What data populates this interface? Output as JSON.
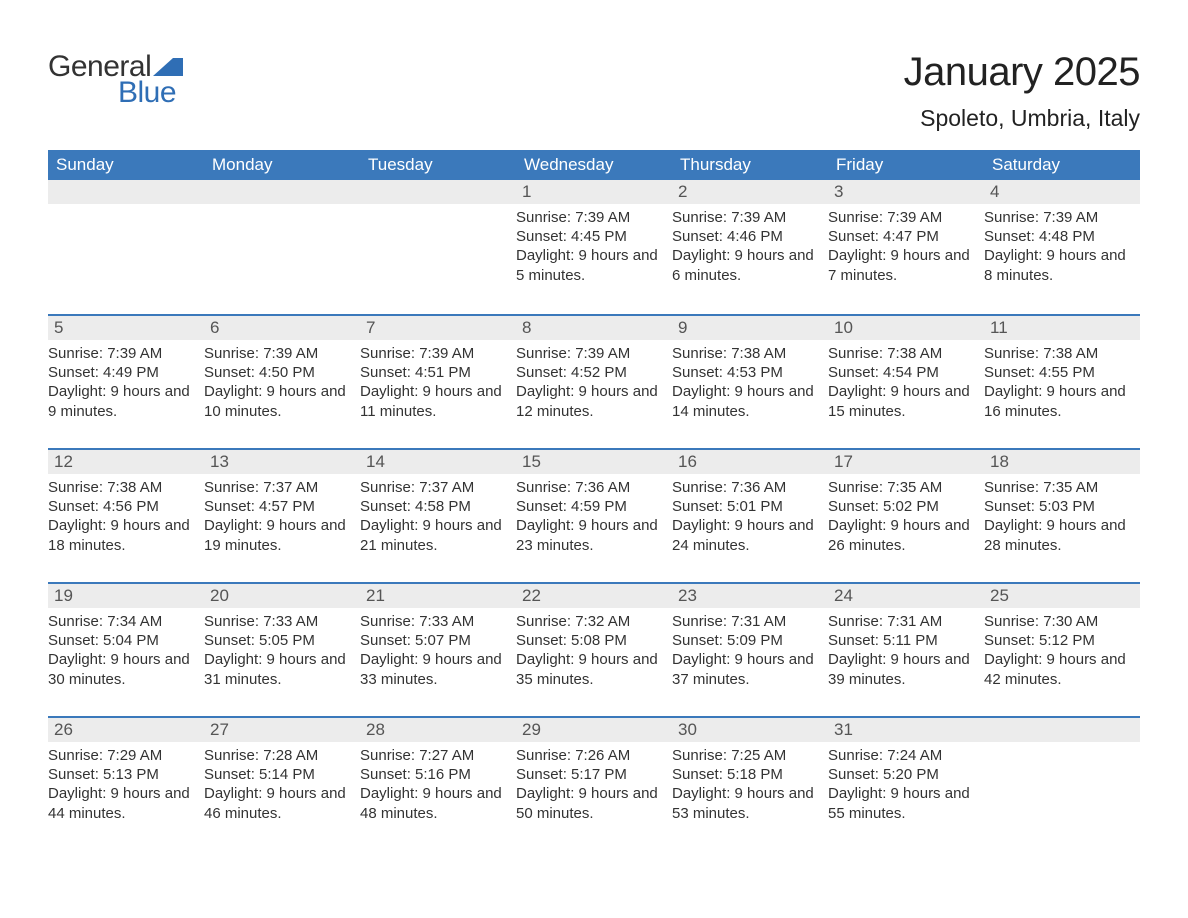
{
  "logo": {
    "text_general": "General",
    "text_blue": "Blue",
    "flag_color": "#2f6eb5"
  },
  "title": {
    "month": "January 2025",
    "location": "Spoleto, Umbria, Italy"
  },
  "colors": {
    "header_bg": "#3b79bb",
    "header_text": "#ffffff",
    "daynum_bg": "#ececec",
    "body_text": "#333333",
    "week_border": "#3b79bb",
    "background": "#ffffff"
  },
  "typography": {
    "title_fontsize": 40,
    "location_fontsize": 23,
    "dayhead_fontsize": 17,
    "daynum_fontsize": 17,
    "body_fontsize": 15
  },
  "calendar": {
    "day_headers": [
      "Sunday",
      "Monday",
      "Tuesday",
      "Wednesday",
      "Thursday",
      "Friday",
      "Saturday"
    ],
    "weeks": [
      [
        null,
        null,
        null,
        {
          "num": "1",
          "sunrise": "7:39 AM",
          "sunset": "4:45 PM",
          "daylight": "9 hours and 5 minutes."
        },
        {
          "num": "2",
          "sunrise": "7:39 AM",
          "sunset": "4:46 PM",
          "daylight": "9 hours and 6 minutes."
        },
        {
          "num": "3",
          "sunrise": "7:39 AM",
          "sunset": "4:47 PM",
          "daylight": "9 hours and 7 minutes."
        },
        {
          "num": "4",
          "sunrise": "7:39 AM",
          "sunset": "4:48 PM",
          "daylight": "9 hours and 8 minutes."
        }
      ],
      [
        {
          "num": "5",
          "sunrise": "7:39 AM",
          "sunset": "4:49 PM",
          "daylight": "9 hours and 9 minutes."
        },
        {
          "num": "6",
          "sunrise": "7:39 AM",
          "sunset": "4:50 PM",
          "daylight": "9 hours and 10 minutes."
        },
        {
          "num": "7",
          "sunrise": "7:39 AM",
          "sunset": "4:51 PM",
          "daylight": "9 hours and 11 minutes."
        },
        {
          "num": "8",
          "sunrise": "7:39 AM",
          "sunset": "4:52 PM",
          "daylight": "9 hours and 12 minutes."
        },
        {
          "num": "9",
          "sunrise": "7:38 AM",
          "sunset": "4:53 PM",
          "daylight": "9 hours and 14 minutes."
        },
        {
          "num": "10",
          "sunrise": "7:38 AM",
          "sunset": "4:54 PM",
          "daylight": "9 hours and 15 minutes."
        },
        {
          "num": "11",
          "sunrise": "7:38 AM",
          "sunset": "4:55 PM",
          "daylight": "9 hours and 16 minutes."
        }
      ],
      [
        {
          "num": "12",
          "sunrise": "7:38 AM",
          "sunset": "4:56 PM",
          "daylight": "9 hours and 18 minutes."
        },
        {
          "num": "13",
          "sunrise": "7:37 AM",
          "sunset": "4:57 PM",
          "daylight": "9 hours and 19 minutes."
        },
        {
          "num": "14",
          "sunrise": "7:37 AM",
          "sunset": "4:58 PM",
          "daylight": "9 hours and 21 minutes."
        },
        {
          "num": "15",
          "sunrise": "7:36 AM",
          "sunset": "4:59 PM",
          "daylight": "9 hours and 23 minutes."
        },
        {
          "num": "16",
          "sunrise": "7:36 AM",
          "sunset": "5:01 PM",
          "daylight": "9 hours and 24 minutes."
        },
        {
          "num": "17",
          "sunrise": "7:35 AM",
          "sunset": "5:02 PM",
          "daylight": "9 hours and 26 minutes."
        },
        {
          "num": "18",
          "sunrise": "7:35 AM",
          "sunset": "5:03 PM",
          "daylight": "9 hours and 28 minutes."
        }
      ],
      [
        {
          "num": "19",
          "sunrise": "7:34 AM",
          "sunset": "5:04 PM",
          "daylight": "9 hours and 30 minutes."
        },
        {
          "num": "20",
          "sunrise": "7:33 AM",
          "sunset": "5:05 PM",
          "daylight": "9 hours and 31 minutes."
        },
        {
          "num": "21",
          "sunrise": "7:33 AM",
          "sunset": "5:07 PM",
          "daylight": "9 hours and 33 minutes."
        },
        {
          "num": "22",
          "sunrise": "7:32 AM",
          "sunset": "5:08 PM",
          "daylight": "9 hours and 35 minutes."
        },
        {
          "num": "23",
          "sunrise": "7:31 AM",
          "sunset": "5:09 PM",
          "daylight": "9 hours and 37 minutes."
        },
        {
          "num": "24",
          "sunrise": "7:31 AM",
          "sunset": "5:11 PM",
          "daylight": "9 hours and 39 minutes."
        },
        {
          "num": "25",
          "sunrise": "7:30 AM",
          "sunset": "5:12 PM",
          "daylight": "9 hours and 42 minutes."
        }
      ],
      [
        {
          "num": "26",
          "sunrise": "7:29 AM",
          "sunset": "5:13 PM",
          "daylight": "9 hours and 44 minutes."
        },
        {
          "num": "27",
          "sunrise": "7:28 AM",
          "sunset": "5:14 PM",
          "daylight": "9 hours and 46 minutes."
        },
        {
          "num": "28",
          "sunrise": "7:27 AM",
          "sunset": "5:16 PM",
          "daylight": "9 hours and 48 minutes."
        },
        {
          "num": "29",
          "sunrise": "7:26 AM",
          "sunset": "5:17 PM",
          "daylight": "9 hours and 50 minutes."
        },
        {
          "num": "30",
          "sunrise": "7:25 AM",
          "sunset": "5:18 PM",
          "daylight": "9 hours and 53 minutes."
        },
        {
          "num": "31",
          "sunrise": "7:24 AM",
          "sunset": "5:20 PM",
          "daylight": "9 hours and 55 minutes."
        },
        null
      ]
    ],
    "labels": {
      "sunrise": "Sunrise:",
      "sunset": "Sunset:",
      "daylight": "Daylight:"
    }
  }
}
